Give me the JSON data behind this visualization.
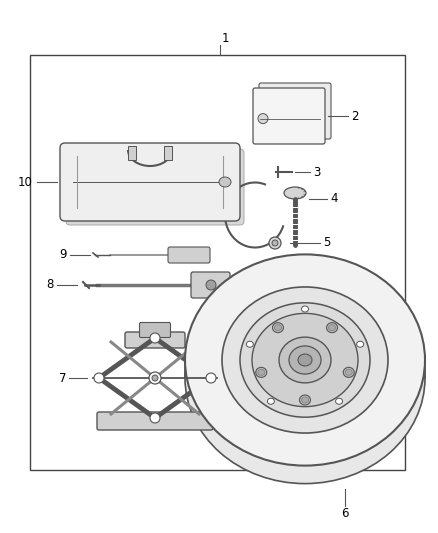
{
  "bg_color": "#ffffff",
  "border_color": "#555555",
  "line_color": "#555555",
  "text_color": "#000000",
  "fig_width": 4.38,
  "fig_height": 5.33,
  "dpi": 100,
  "border": [
    0.12,
    0.05,
    0.83,
    0.86
  ],
  "label_fs": 8.5
}
